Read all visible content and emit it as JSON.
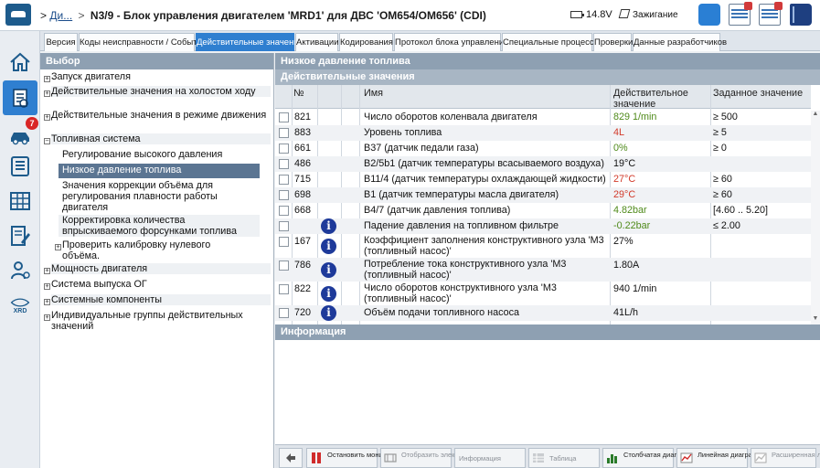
{
  "header": {
    "breadcrumb_prefix": ">",
    "breadcrumb_link": "Ди...",
    "breadcrumb_sep": ">",
    "title": "N3/9 - Блок управления двигателем 'MRD1' для ДВС 'OM654/OM656' (CDI)",
    "voltage": "14.8V",
    "ignition": "Зажигание"
  },
  "leftbar": {
    "badge_count": "7",
    "xrd_label": "XRD"
  },
  "tabs": [
    {
      "label": "Версия"
    },
    {
      "label": "Коды неисправности / События"
    },
    {
      "label": "Действительные значения"
    },
    {
      "label": "Активации"
    },
    {
      "label": "Кодирования"
    },
    {
      "label": "Протокол блока управления"
    },
    {
      "label": "Специальные процессы"
    },
    {
      "label": "Проверки"
    },
    {
      "label": "Данные разработчиков"
    }
  ],
  "left_panel": {
    "header": "Выбор",
    "items": [
      {
        "label": "Запуск двигателя"
      },
      {
        "label": "Действительные значения на холостом ходу"
      },
      {
        "label": "Действительные значения в режиме движения"
      },
      {
        "label": "Топливная система"
      },
      {
        "label": "Регулирование высокого давления"
      },
      {
        "label": "Низкое давление топлива"
      },
      {
        "label": "Значения коррекции объёма для регулирования плавности работы двигателя"
      },
      {
        "label": "Корректировка количества впрыскиваемого форсунками топлива"
      },
      {
        "label": "Проверить калибровку нулевого объёма."
      },
      {
        "label": "Мощность двигателя"
      },
      {
        "label": "Система выпуска ОГ"
      },
      {
        "label": "Системные компоненты"
      },
      {
        "label": "Индивидуальные группы действительных значений"
      }
    ]
  },
  "right_panel": {
    "header": "Низкое давление топлива",
    "subheader": "Действительные значения",
    "columns": {
      "no": "№",
      "name": "Имя",
      "actual": "Действительное значение",
      "target": "Заданное значение"
    },
    "rows": [
      {
        "no": "821",
        "name": "Число оборотов коленвала двигателя",
        "actual": "829 1/min",
        "target": "≥ 500"
      },
      {
        "no": "883",
        "name": "Уровень топлива",
        "actual": "4L",
        "target": "≥ 5"
      },
      {
        "no": "661",
        "name": "B37 (датчик педали газа)",
        "actual": "0%",
        "target": "≥ 0"
      },
      {
        "no": "486",
        "name": "B2/5b1 (датчик температуры всасываемого воздуха)",
        "actual": "19°C",
        "target": ""
      },
      {
        "no": "715",
        "name": "B11/4 (датчик температуры охлаждающей жидкости)",
        "actual": "27°C",
        "target": "≥ 60"
      },
      {
        "no": "698",
        "name": "B1 (датчик температуры масла двигателя)",
        "actual": "29°C",
        "target": "≥ 60"
      },
      {
        "no": "668",
        "name": "B4/7 (датчик давления топлива)",
        "actual": "4.82bar",
        "target": "[4.60 .. 5.20]"
      },
      {
        "no": "",
        "name": "Падение давления на топливном фильтре",
        "actual": "-0.22bar",
        "target": "≤ 2.00"
      },
      {
        "no": "167",
        "name": "Коэффициент заполнения конструктивного узла 'M3 (топливный насос)'",
        "actual": "27%",
        "target": ""
      },
      {
        "no": "786",
        "name": "Потребление тока конструктивного узла 'M3 (топливный насос)'",
        "actual": "1.80A",
        "target": ""
      },
      {
        "no": "822",
        "name": "Число оборотов конструктивного узла 'M3 (топливный насос)'",
        "actual": "940 1/min",
        "target": ""
      },
      {
        "no": "720",
        "name": "Объём подачи топливного насоса",
        "actual": "41L/h",
        "target": ""
      }
    ],
    "info_header": "Информация"
  },
  "bottom_toolbar": {
    "back": "",
    "stop": "Остановить мониторинг",
    "schematic": "Отобразить электросхему.",
    "info": "Информация",
    "table": "Таблица",
    "bar": "Столбчатая диаграмма",
    "line": "Линейная диаграмма",
    "ext_line": "Расширенная линейная..."
  },
  "colors": {
    "accent": "#2f7fd0",
    "header_bg": "#8ea0b2",
    "value_green": "#4f8a1a",
    "value_red": "#d23a2a",
    "value_orange": "#e8891c",
    "info_icon": "#1e3a9a"
  }
}
